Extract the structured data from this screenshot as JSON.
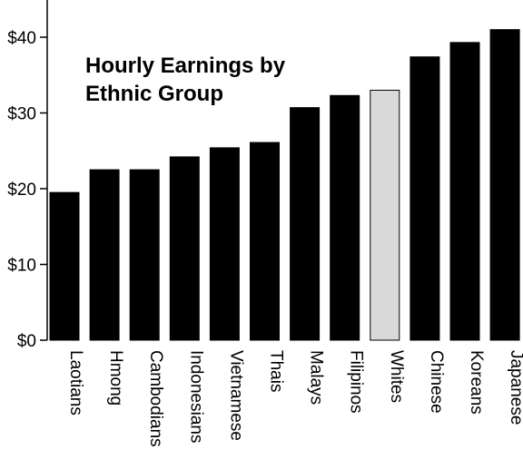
{
  "chart_data": {
    "type": "bar",
    "title_lines": [
      "Hourly Earnings by",
      "Ethnic Group"
    ],
    "xlabel": "",
    "ylabel": "",
    "ylim": [
      0,
      45
    ],
    "yticks": [
      0,
      10,
      20,
      30,
      40
    ],
    "ytick_labels": [
      "$0",
      "$10",
      "$20",
      "$30",
      "$40"
    ],
    "categories": [
      "Laotians",
      "Hmong",
      "Cambodians",
      "Indonesians",
      "Vietnamese",
      "Thais",
      "Malays",
      "Filipinos",
      "Whites",
      "Chinese",
      "Koreans",
      "Japanese"
    ],
    "values": [
      19.5,
      22.5,
      22.5,
      24.2,
      25.4,
      26.1,
      30.7,
      32.3,
      33.0,
      37.4,
      39.3,
      41.0
    ],
    "bar_colors": [
      "#000000",
      "#000000",
      "#000000",
      "#000000",
      "#000000",
      "#000000",
      "#000000",
      "#000000",
      "#d9d9d9",
      "#000000",
      "#000000",
      "#000000"
    ],
    "highlight_category": "Whites",
    "grid": false,
    "legend": "none"
  }
}
